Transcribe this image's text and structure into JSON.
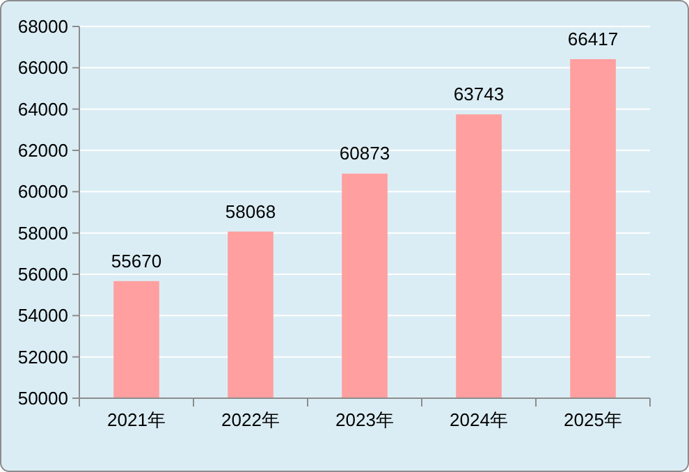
{
  "chart_data": {
    "type": "bar",
    "categories": [
      "2021年",
      "2022年",
      "2023年",
      "2024年",
      "2025年"
    ],
    "values": [
      55670,
      58068,
      60873,
      63743,
      66417
    ],
    "color": "#ff9f9f",
    "ylim": [
      50000,
      68000
    ],
    "yticks": [
      50000,
      52000,
      54000,
      56000,
      58000,
      60000,
      62000,
      64000,
      66000,
      68000
    ],
    "grid": "y",
    "data_labels": true
  }
}
